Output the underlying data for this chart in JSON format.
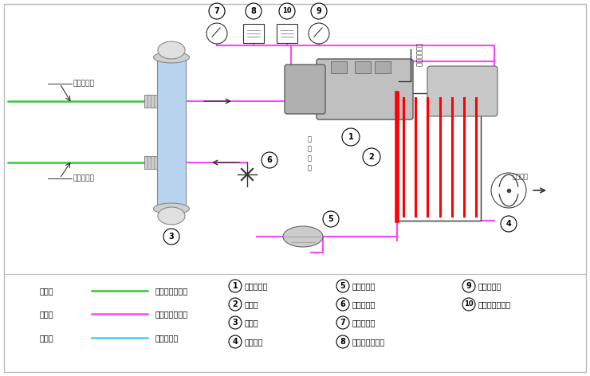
{
  "bg_color": "#ffffff",
  "border_color": "#aaaaaa",
  "magenta": "#ff44ff",
  "green": "#33cc33",
  "cyan": "#44ccff",
  "red": "#ff0000",
  "dark": "#333333",
  "legend_items": [
    {
      "label_left": "绿色线",
      "color": "#33cc33",
      "label_right": "载冷剂循环回路"
    },
    {
      "label_left": "红色线",
      "color": "#ff44ff",
      "label_right": "制冷剂循环回路"
    },
    {
      "label_left": "蓝色线",
      "color": "#44ccff",
      "label_right": "水循环回路"
    }
  ],
  "numbered_items_col1": [
    {
      "num": "1",
      "label": "螺杆压缩机"
    },
    {
      "num": "2",
      "label": "冷凝器"
    },
    {
      "num": "3",
      "label": "蒸发器"
    },
    {
      "num": "4",
      "label": "冷却风扇"
    }
  ],
  "numbered_items_col2": [
    {
      "num": "5",
      "label": "干燥过滤器"
    },
    {
      "num": "6",
      "label": "供液膨胀阀"
    },
    {
      "num": "7",
      "label": "低压压力表"
    },
    {
      "num": "8",
      "label": "低压压力控制器"
    }
  ],
  "numbered_items_col3": [
    {
      "num": "9",
      "label": "高压压力表"
    },
    {
      "num": "10",
      "label": "高压压力控制器"
    }
  ]
}
